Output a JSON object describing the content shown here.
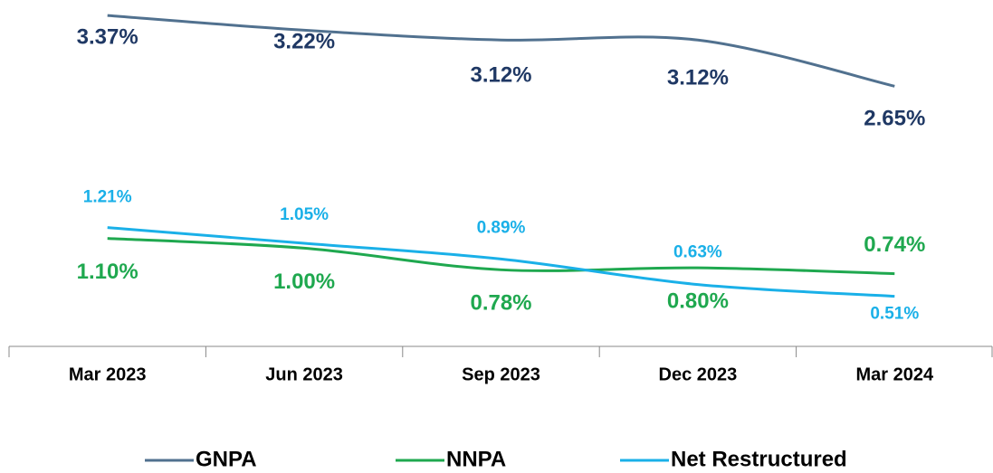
{
  "chart_data": {
    "type": "line",
    "categories": [
      "Mar 2023",
      "Jun 2023",
      "Sep 2023",
      "Dec 2023",
      "Mar 2024"
    ],
    "ylim": [
      0,
      3.5
    ],
    "series": [
      {
        "name": "GNPA",
        "color": "#51718f",
        "label_color": "#1f3864",
        "values": [
          3.37,
          3.22,
          3.12,
          3.12,
          2.65
        ],
        "value_labels": [
          "3.37%",
          "3.22%",
          "3.12%",
          "3.12%",
          "2.65%"
        ]
      },
      {
        "name": "NNPA",
        "color": "#1fa84f",
        "label_color": "#1fa84f",
        "values": [
          1.1,
          1.0,
          0.78,
          0.8,
          0.74
        ],
        "value_labels": [
          "1.10%",
          "1.00%",
          "0.78%",
          "0.80%",
          "0.74%"
        ]
      },
      {
        "name": "Net Restructured",
        "color": "#1ab0e8",
        "label_color": "#1ab0e8",
        "values": [
          1.21,
          1.05,
          0.89,
          0.63,
          0.51
        ],
        "value_labels": [
          "1.21%",
          "1.05%",
          "0.89%",
          "0.63%",
          "0.51%"
        ]
      }
    ]
  }
}
